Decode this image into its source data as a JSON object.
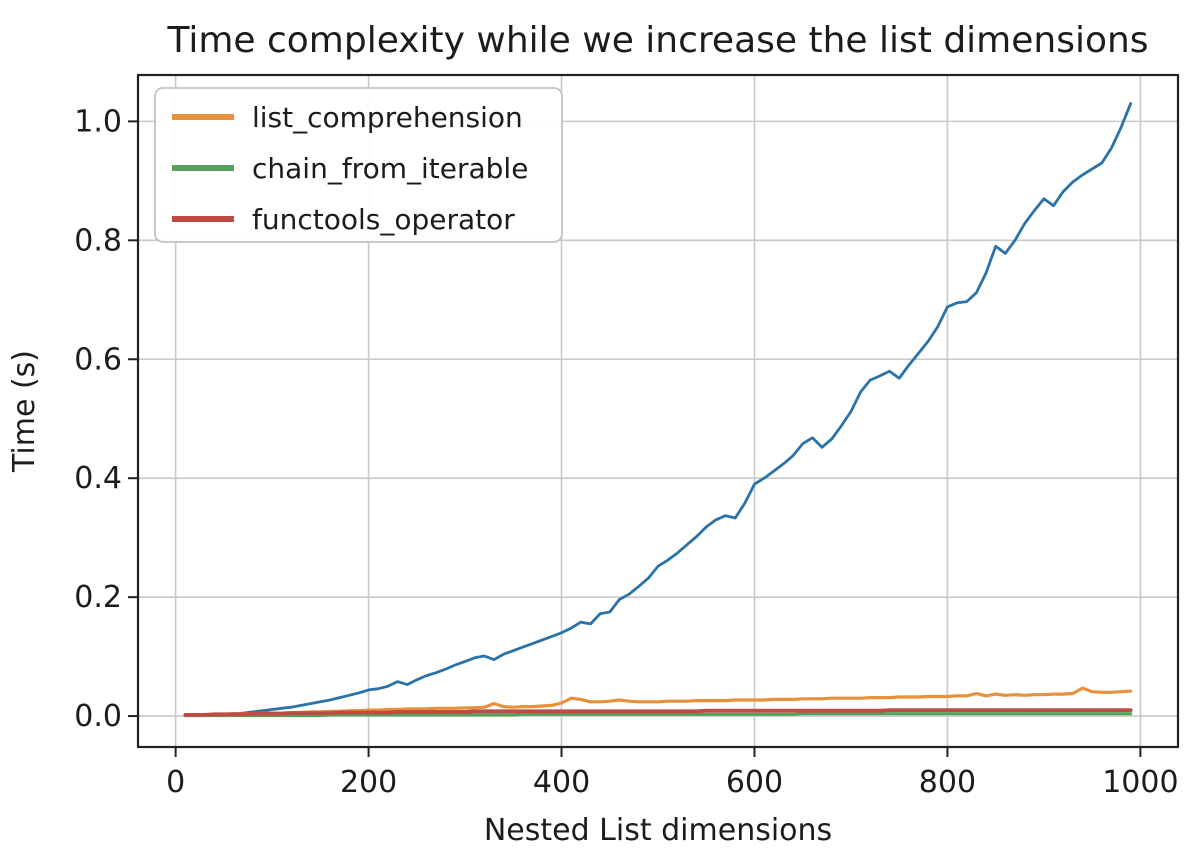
{
  "chart_data": {
    "type": "line",
    "title": "Time complexity while we increase the list dimensions",
    "xlabel": "Nested List dimensions",
    "ylabel": "Time (s)",
    "xlim": [
      -39,
      1039
    ],
    "ylim": [
      -0.052,
      1.078
    ],
    "xticks": [
      0,
      200,
      400,
      600,
      800,
      1000
    ],
    "xtick_labels": [
      "0",
      "200",
      "400",
      "600",
      "800",
      "1000"
    ],
    "yticks": [
      0.0,
      0.2,
      0.4,
      0.6,
      0.8,
      1.0
    ],
    "ytick_labels": [
      "0.0",
      "0.2",
      "0.4",
      "0.6",
      "0.8",
      "1.0"
    ],
    "grid": true,
    "legend_position": "upper-left",
    "legend_entries": [
      "list_comprehension",
      "chain_from_iterable",
      "functools_operator"
    ],
    "x": [
      10,
      20,
      30,
      40,
      50,
      60,
      70,
      80,
      90,
      100,
      110,
      120,
      130,
      140,
      150,
      160,
      170,
      180,
      190,
      200,
      210,
      220,
      230,
      240,
      250,
      260,
      270,
      280,
      290,
      300,
      310,
      320,
      330,
      340,
      350,
      360,
      370,
      380,
      390,
      400,
      410,
      420,
      430,
      440,
      450,
      460,
      470,
      480,
      490,
      500,
      510,
      520,
      530,
      540,
      550,
      560,
      570,
      580,
      590,
      600,
      610,
      620,
      630,
      640,
      650,
      660,
      670,
      680,
      690,
      700,
      710,
      720,
      730,
      740,
      750,
      760,
      770,
      780,
      790,
      800,
      810,
      820,
      830,
      840,
      850,
      860,
      870,
      880,
      890,
      900,
      910,
      920,
      930,
      940,
      950,
      960,
      970,
      980,
      990
    ],
    "series": [
      {
        "name": "unlabeled_quadratic_line",
        "in_legend": false,
        "color": "#2a72a8",
        "width": 2.8,
        "values": [
          0.001,
          0.001,
          0.002,
          0.002,
          0.003,
          0.004,
          0.005,
          0.007,
          0.009,
          0.011,
          0.013,
          0.015,
          0.018,
          0.021,
          0.024,
          0.027,
          0.031,
          0.035,
          0.039,
          0.044,
          0.046,
          0.05,
          0.058,
          0.053,
          0.061,
          0.068,
          0.073,
          0.079,
          0.086,
          0.092,
          0.098,
          0.101,
          0.095,
          0.104,
          0.11,
          0.116,
          0.122,
          0.128,
          0.134,
          0.14,
          0.148,
          0.158,
          0.155,
          0.172,
          0.175,
          0.196,
          0.205,
          0.218,
          0.232,
          0.252,
          0.262,
          0.274,
          0.288,
          0.302,
          0.318,
          0.33,
          0.337,
          0.333,
          0.358,
          0.39,
          0.4,
          0.412,
          0.424,
          0.438,
          0.458,
          0.468,
          0.452,
          0.466,
          0.488,
          0.512,
          0.545,
          0.565,
          0.572,
          0.58,
          0.568,
          0.59,
          0.61,
          0.63,
          0.655,
          0.688,
          0.695,
          0.697,
          0.712,
          0.745,
          0.79,
          0.778,
          0.8,
          0.828,
          0.85,
          0.87,
          0.858,
          0.882,
          0.898,
          0.91,
          0.92,
          0.93,
          0.955,
          0.99,
          1.03
        ]
      },
      {
        "name": "list_comprehension",
        "in_legend": true,
        "color": "#e6913c",
        "width": 3.2,
        "values": [
          0.001,
          0.002,
          0.002,
          0.003,
          0.003,
          0.004,
          0.004,
          0.004,
          0.005,
          0.005,
          0.005,
          0.006,
          0.006,
          0.007,
          0.007,
          0.008,
          0.008,
          0.009,
          0.009,
          0.01,
          0.01,
          0.011,
          0.011,
          0.012,
          0.012,
          0.012,
          0.013,
          0.013,
          0.013,
          0.014,
          0.014,
          0.015,
          0.021,
          0.016,
          0.015,
          0.016,
          0.016,
          0.017,
          0.018,
          0.022,
          0.03,
          0.028,
          0.024,
          0.024,
          0.025,
          0.027,
          0.025,
          0.024,
          0.024,
          0.024,
          0.025,
          0.025,
          0.025,
          0.026,
          0.026,
          0.026,
          0.026,
          0.027,
          0.027,
          0.027,
          0.027,
          0.028,
          0.028,
          0.028,
          0.029,
          0.029,
          0.029,
          0.03,
          0.03,
          0.03,
          0.03,
          0.031,
          0.031,
          0.031,
          0.032,
          0.032,
          0.032,
          0.033,
          0.033,
          0.033,
          0.034,
          0.034,
          0.038,
          0.034,
          0.037,
          0.035,
          0.036,
          0.035,
          0.036,
          0.036,
          0.037,
          0.037,
          0.038,
          0.047,
          0.041,
          0.04,
          0.04,
          0.041,
          0.042
        ]
      },
      {
        "name": "chain_from_iterable",
        "in_legend": true,
        "color": "#57a05c",
        "width": 3.2,
        "values": [
          0.001,
          0.001,
          0.001,
          0.001,
          0.001,
          0.001,
          0.001,
          0.001,
          0.001,
          0.001,
          0.001,
          0.001,
          0.001,
          0.001,
          0.001,
          0.002,
          0.002,
          0.002,
          0.002,
          0.002,
          0.002,
          0.002,
          0.002,
          0.002,
          0.002,
          0.002,
          0.002,
          0.002,
          0.002,
          0.002,
          0.002,
          0.002,
          0.002,
          0.002,
          0.002,
          0.003,
          0.003,
          0.003,
          0.003,
          0.003,
          0.003,
          0.003,
          0.003,
          0.003,
          0.003,
          0.003,
          0.003,
          0.003,
          0.003,
          0.003,
          0.003,
          0.003,
          0.003,
          0.003,
          0.003,
          0.003,
          0.003,
          0.003,
          0.003,
          0.003,
          0.003,
          0.003,
          0.003,
          0.003,
          0.004,
          0.004,
          0.004,
          0.004,
          0.004,
          0.004,
          0.004,
          0.004,
          0.004,
          0.004,
          0.004,
          0.004,
          0.004,
          0.004,
          0.004,
          0.004,
          0.004,
          0.004,
          0.004,
          0.004,
          0.004,
          0.004,
          0.004,
          0.004,
          0.004,
          0.004,
          0.004,
          0.004,
          0.004,
          0.004,
          0.004,
          0.004,
          0.004,
          0.004,
          0.004
        ]
      },
      {
        "name": "functools_operator",
        "in_legend": true,
        "color": "#bf4b45",
        "width": 3.8,
        "values": [
          0.002,
          0.002,
          0.002,
          0.003,
          0.003,
          0.003,
          0.003,
          0.004,
          0.004,
          0.004,
          0.004,
          0.005,
          0.005,
          0.005,
          0.005,
          0.005,
          0.006,
          0.006,
          0.006,
          0.006,
          0.006,
          0.006,
          0.007,
          0.007,
          0.007,
          0.007,
          0.007,
          0.007,
          0.007,
          0.007,
          0.008,
          0.008,
          0.008,
          0.008,
          0.008,
          0.008,
          0.008,
          0.008,
          0.008,
          0.008,
          0.008,
          0.008,
          0.008,
          0.008,
          0.008,
          0.008,
          0.008,
          0.008,
          0.008,
          0.008,
          0.008,
          0.008,
          0.008,
          0.008,
          0.009,
          0.009,
          0.009,
          0.009,
          0.009,
          0.009,
          0.009,
          0.009,
          0.009,
          0.009,
          0.009,
          0.009,
          0.009,
          0.009,
          0.009,
          0.009,
          0.009,
          0.009,
          0.009,
          0.01,
          0.01,
          0.01,
          0.01,
          0.01,
          0.01,
          0.01,
          0.01,
          0.01,
          0.01,
          0.01,
          0.01,
          0.01,
          0.01,
          0.01,
          0.01,
          0.01,
          0.01,
          0.01,
          0.01,
          0.01,
          0.01,
          0.01,
          0.01,
          0.01,
          0.01
        ]
      }
    ]
  },
  "colors": {
    "background": "#ffffff",
    "grid": "#c9c9c9",
    "spine": "#222222",
    "tick": "#222222",
    "text": "#1c1c1c",
    "legend_border": "#c2c2c2",
    "legend_bg": "#ffffff",
    "blue_line": "#2a72a8",
    "orange_line": "#e6913c",
    "green_line": "#57a05c",
    "red_line": "#bf4b45"
  }
}
